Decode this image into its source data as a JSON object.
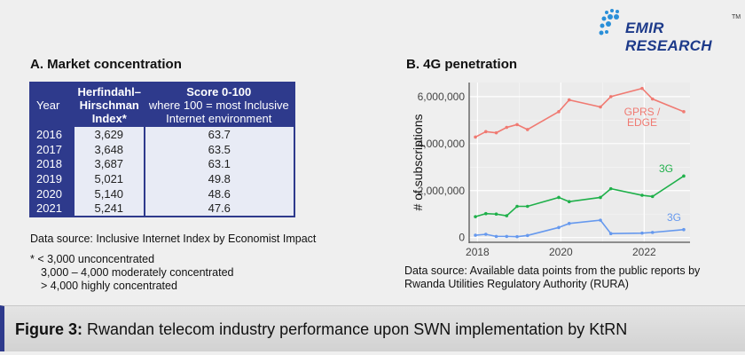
{
  "logo": {
    "text": "EMIR RESEARCH",
    "tm": "TM"
  },
  "section_a": {
    "title": "A. Market concentration",
    "headers": {
      "year": "Year",
      "hhi_l1": "Herfindahl–",
      "hhi_l2": "Hirschman",
      "hhi_l3": "Index*",
      "score_l1": "Score 0-100",
      "score_l2": "where 100 = most Inclusive",
      "score_l3": "Internet environment"
    },
    "rows": [
      {
        "year": "2016",
        "hhi": "3,629",
        "score": "63.7"
      },
      {
        "year": "2017",
        "hhi": "3,648",
        "score": "63.5"
      },
      {
        "year": "2018",
        "hhi": "3,687",
        "score": "63.1"
      },
      {
        "year": "2019",
        "hhi": "5,021",
        "score": "49.8"
      },
      {
        "year": "2020",
        "hhi": "5,140",
        "score": "48.6"
      },
      {
        "year": "2021",
        "hhi": "5,241",
        "score": "47.6"
      }
    ],
    "source": "Data source: Inclusive Internet Index by Economist Impact",
    "footnote": [
      "*  < 3,000 unconcentrated",
      "3,000 – 4,000 moderately concentrated",
      "> 4,000 highly concentrated"
    ]
  },
  "section_b": {
    "title": "B. 4G penetration",
    "source_l1": "Data source: Available data points from the public reports by",
    "source_l2": "Rwanda Utilities Regulatory Authority (RURA)"
  },
  "chart_data": {
    "type": "line",
    "ylabel": "# of subscriptions",
    "xlabel": "",
    "xlim": [
      2017.8,
      2023.1
    ],
    "ylim": [
      -200000,
      6600000
    ],
    "xticks": [
      "2018",
      "2020",
      "2022"
    ],
    "yticks": [
      "0",
      "2,000,000",
      "4,000,000",
      "6,000,000"
    ],
    "grid": true,
    "x": [
      2017.95,
      2018.2,
      2018.45,
      2018.7,
      2018.95,
      2019.2,
      2019.95,
      2020.2,
      2020.95,
      2021.2,
      2021.95,
      2022.2,
      2022.95
    ],
    "series": [
      {
        "name": "GPRS / EDGE",
        "color": "#f07a72",
        "values": [
          4280000,
          4510000,
          4460000,
          4690000,
          4810000,
          4600000,
          5360000,
          5860000,
          5560000,
          6000000,
          6350000,
          5900000,
          5360000
        ]
      },
      {
        "name": "3G",
        "color": "#1fb04a",
        "values": [
          890000,
          1020000,
          1000000,
          930000,
          1330000,
          1330000,
          1710000,
          1530000,
          1710000,
          2080000,
          1800000,
          1750000,
          2620000
        ]
      },
      {
        "name": "3G",
        "color": "#6699ee",
        "values": [
          100000,
          140000,
          50000,
          50000,
          40000,
          90000,
          430000,
          600000,
          740000,
          170000,
          190000,
          220000,
          340000
        ]
      }
    ]
  },
  "caption": {
    "label": "Figure 3:",
    "text": " Rwandan telecom industry performance upon SWN implementation by KtRN"
  }
}
